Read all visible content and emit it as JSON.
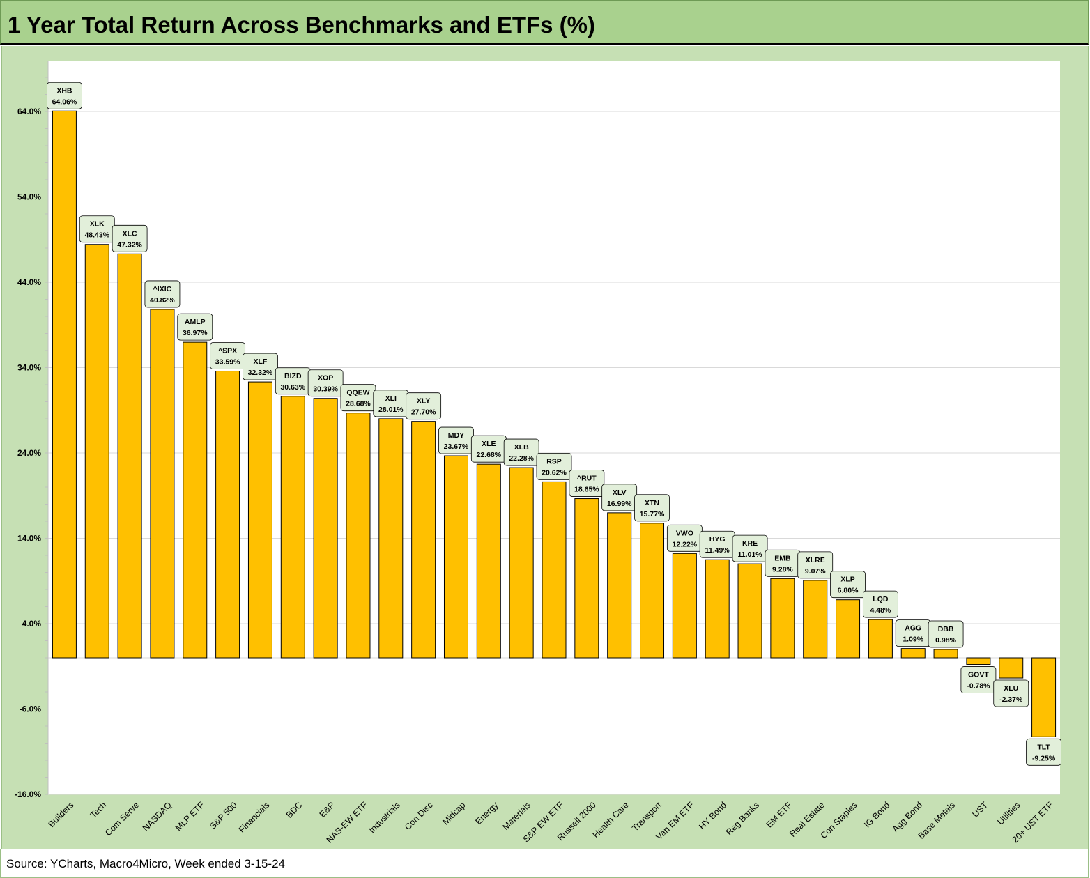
{
  "title": "1 Year Total Return Across Benchmarks and ETFs (%)",
  "source": "Source: YCharts, Macro4Micro, Week ended 3-15-24",
  "colors": {
    "title_bg": "#a9d18e",
    "frame_bg": "#c6e0b4",
    "bar_fill": "#ffc000",
    "label_bg": "#e2efda"
  },
  "chart_data": {
    "type": "bar",
    "title": "1 Year Total Return Across Benchmarks and ETFs (%)",
    "xlabel": "",
    "ylabel": "",
    "ylim": [
      -16,
      70
    ],
    "yticks": [
      64,
      54,
      44,
      34,
      24,
      14,
      4,
      -6,
      -16
    ],
    "ytick_labels": [
      "64.0%",
      "54.0%",
      "44.0%",
      "34.0%",
      "24.0%",
      "14.0%",
      "4.0%",
      "-6.0%",
      "-16.0%"
    ],
    "grid": true,
    "legend": "none",
    "categories": [
      "Builders",
      "Tech",
      "Com Serve",
      "NASDAQ",
      "MLP ETF",
      "S&P 500",
      "Financials",
      "BDC",
      "E&P",
      "NAS-EW ETF",
      "Industrials",
      "Con Disc",
      "Midcap",
      "Energy",
      "Materials",
      "S&P EW ETF",
      "Russell 2000",
      "Health Care",
      "Transport",
      "Van EM ETF",
      "HY Bond",
      "Reg Banks",
      "EM ETF",
      "Real Estate",
      "Con Staples",
      "IG Bond",
      "Agg Bond",
      "Base Metals",
      "UST",
      "Utilities",
      "20+ UST ETF"
    ],
    "tickers": [
      "XHB",
      "XLK",
      "XLC",
      "^IXIC",
      "AMLP",
      "^SPX",
      "XLF",
      "BIZD",
      "XOP",
      "QQEW",
      "XLI",
      "XLY",
      "MDY",
      "XLE",
      "XLB",
      "RSP",
      "^RUT",
      "XLV",
      "XTN",
      "VWO",
      "HYG",
      "KRE",
      "EMB",
      "XLRE",
      "XLP",
      "LQD",
      "AGG",
      "DBB",
      "GOVT",
      "XLU",
      "TLT"
    ],
    "values": [
      64.06,
      48.43,
      47.32,
      40.82,
      36.97,
      33.59,
      32.32,
      30.63,
      30.39,
      28.68,
      28.01,
      27.7,
      23.67,
      22.68,
      22.28,
      20.62,
      18.65,
      16.99,
      15.77,
      12.22,
      11.49,
      11.01,
      9.28,
      9.07,
      6.8,
      4.48,
      1.09,
      0.98,
      -0.78,
      -2.37,
      -9.25
    ],
    "value_labels": [
      "64.06%",
      "48.43%",
      "47.32%",
      "40.82%",
      "36.97%",
      "33.59%",
      "32.32%",
      "30.63%",
      "30.39%",
      "28.68%",
      "28.01%",
      "27.70%",
      "23.67%",
      "22.68%",
      "22.28%",
      "20.62%",
      "18.65%",
      "16.99%",
      "15.77%",
      "12.22%",
      "11.49%",
      "11.01%",
      "9.28%",
      "9.07%",
      "6.80%",
      "4.48%",
      "1.09%",
      "0.98%",
      "-0.78%",
      "-2.37%",
      "-9.25%"
    ]
  }
}
